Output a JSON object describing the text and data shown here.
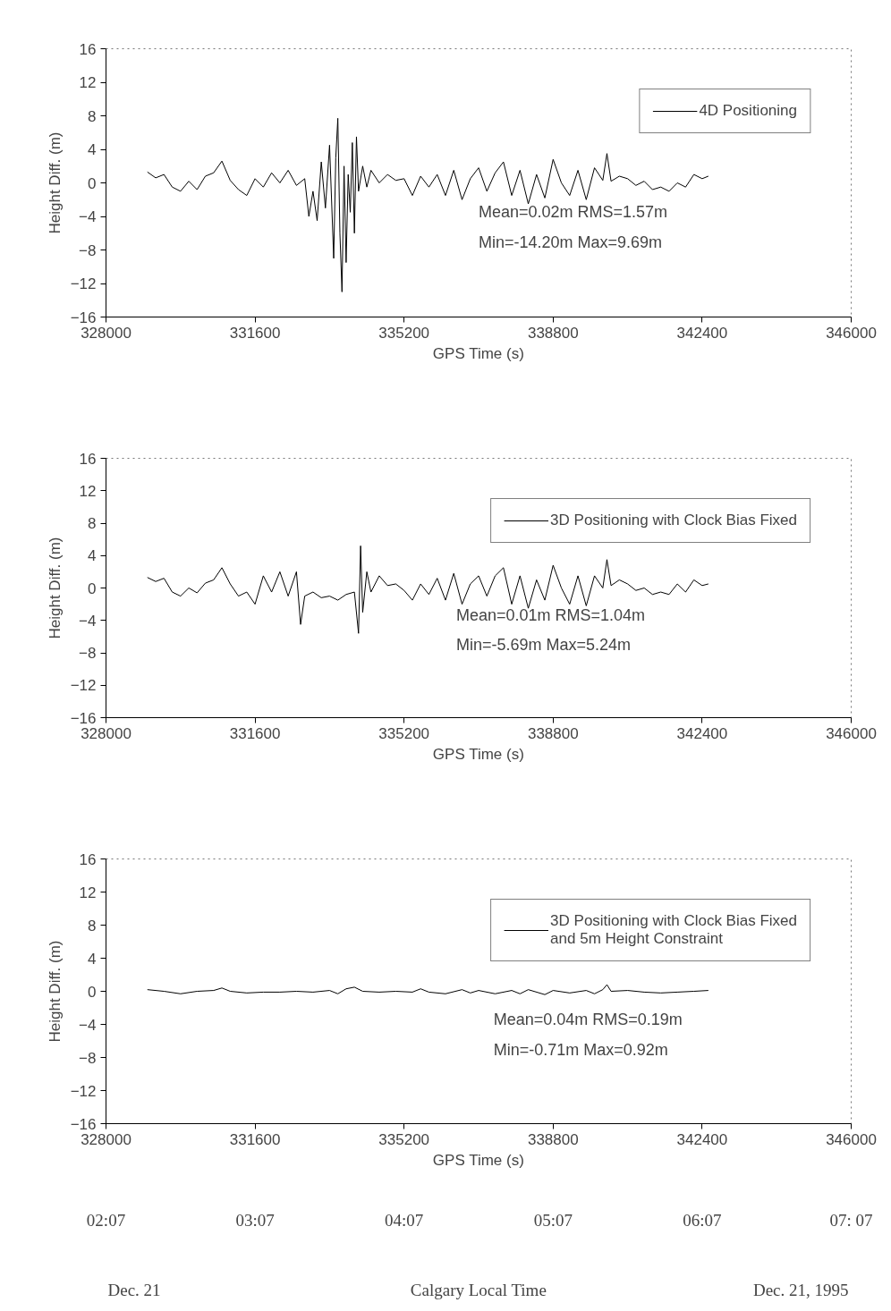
{
  "chart_data": [
    {
      "type": "line",
      "xlabel": "GPS Time (s)",
      "ylabel": "Height Diff. (m)",
      "xlim": [
        328000,
        346000
      ],
      "ylim": [
        -16,
        16
      ],
      "xticks": [
        328000,
        331600,
        335200,
        338800,
        342400,
        346000
      ],
      "yticks": [
        -16,
        -12,
        -8,
        -4,
        0,
        4,
        8,
        12,
        16
      ],
      "grid": false,
      "legend": "top right",
      "series": [
        {
          "name": "4D Positioning",
          "color": "#000000",
          "x": [
            329000,
            329200,
            329400,
            329600,
            329800,
            330000,
            330200,
            330400,
            330600,
            330800,
            331000,
            331200,
            331400,
            331600,
            331800,
            332000,
            332200,
            332400,
            332600,
            332800,
            332900,
            333000,
            333100,
            333200,
            333300,
            333400,
            333500,
            333550,
            333600,
            333650,
            333700,
            333750,
            333800,
            333850,
            333900,
            333950,
            334000,
            334050,
            334100,
            334200,
            334300,
            334400,
            334600,
            334800,
            335000,
            335200,
            335400,
            335600,
            335800,
            336000,
            336200,
            336400,
            336600,
            336800,
            337000,
            337200,
            337400,
            337600,
            337800,
            338000,
            338200,
            338400,
            338600,
            338800,
            339000,
            339200,
            339400,
            339600,
            339800,
            340000,
            340100,
            340200,
            340400,
            340600,
            340800,
            341000,
            341200,
            341400,
            341600,
            341800,
            342000,
            342200,
            342400,
            342550
          ],
          "values": [
            1.3,
            0.6,
            1.0,
            -0.5,
            -1.0,
            0.2,
            -0.8,
            0.8,
            1.2,
            2.6,
            0.3,
            -0.8,
            -1.5,
            0.5,
            -0.5,
            1.2,
            0.0,
            1.5,
            -0.3,
            0.5,
            -4.0,
            -1.0,
            -4.5,
            2.5,
            -3.0,
            4.5,
            -9.0,
            3.0,
            7.7,
            -6.0,
            -13.0,
            2.0,
            -9.5,
            1.0,
            -3.5,
            4.8,
            -6.0,
            5.5,
            -1.0,
            2.0,
            -0.5,
            1.5,
            0.0,
            1.0,
            0.3,
            0.5,
            -1.5,
            0.8,
            -0.5,
            1.0,
            -1.5,
            1.5,
            -2.0,
            0.5,
            1.8,
            -1.0,
            1.2,
            2.5,
            -1.5,
            1.5,
            -2.5,
            1.0,
            -1.8,
            2.8,
            0.0,
            -1.5,
            1.5,
            -2.0,
            1.8,
            0.3,
            3.5,
            0.2,
            0.8,
            0.5,
            -0.3,
            0.2,
            -0.8,
            -0.5,
            -1.0,
            0.0,
            -0.5,
            1.0,
            0.5,
            0.8
          ]
        }
      ],
      "annotations": [
        "Mean=0.02m   RMS=1.57m",
        "Min=-14.20m   Max=9.69m"
      ]
    },
    {
      "type": "line",
      "xlabel": "GPS Time (s)",
      "ylabel": "Height Diff. (m)",
      "xlim": [
        328000,
        346000
      ],
      "ylim": [
        -16,
        16
      ],
      "xticks": [
        328000,
        331600,
        335200,
        338800,
        342400,
        346000
      ],
      "yticks": [
        -16,
        -12,
        -8,
        -4,
        0,
        4,
        8,
        12,
        16
      ],
      "grid": false,
      "legend": "top right",
      "series": [
        {
          "name": "3D Positioning with Clock Bias Fixed",
          "color": "#000000",
          "x": [
            329000,
            329200,
            329400,
            329600,
            329800,
            330000,
            330200,
            330400,
            330600,
            330800,
            331000,
            331200,
            331400,
            331600,
            331800,
            332000,
            332200,
            332400,
            332600,
            332700,
            332800,
            333000,
            333200,
            333400,
            333600,
            333800,
            334000,
            334100,
            334150,
            334200,
            334300,
            334400,
            334600,
            334800,
            335000,
            335200,
            335400,
            335600,
            335800,
            336000,
            336200,
            336400,
            336600,
            336800,
            337000,
            337200,
            337400,
            337600,
            337800,
            338000,
            338200,
            338400,
            338600,
            338800,
            339000,
            339200,
            339400,
            339600,
            339800,
            340000,
            340100,
            340200,
            340400,
            340600,
            340800,
            341000,
            341200,
            341400,
            341600,
            341800,
            342000,
            342200,
            342400,
            342550
          ],
          "values": [
            1.3,
            0.8,
            1.2,
            -0.5,
            -1.0,
            0.0,
            -0.6,
            0.6,
            1.0,
            2.5,
            0.5,
            -1.0,
            -0.5,
            -2.0,
            1.5,
            -0.5,
            2.0,
            -1.0,
            2.0,
            -4.5,
            -1.0,
            -0.5,
            -1.2,
            -1.0,
            -1.5,
            -0.8,
            -0.5,
            -5.6,
            5.2,
            -3.0,
            2.0,
            -0.5,
            1.5,
            0.3,
            0.5,
            -0.3,
            -1.5,
            0.5,
            -0.8,
            1.2,
            -1.5,
            1.8,
            -2.0,
            0.5,
            1.5,
            -1.0,
            1.5,
            2.5,
            -2.0,
            1.5,
            -2.5,
            1.0,
            -1.5,
            2.8,
            0.0,
            -2.0,
            1.5,
            -2.2,
            1.5,
            0.0,
            3.5,
            0.3,
            1.0,
            0.5,
            -0.3,
            0.0,
            -0.8,
            -0.5,
            -0.8,
            0.5,
            -0.5,
            1.0,
            0.3,
            0.5
          ]
        }
      ],
      "annotations": [
        "Mean=0.01m   RMS=1.04m",
        "Min=-5.69m     Max=5.24m"
      ]
    },
    {
      "type": "line",
      "xlabel": "GPS Time (s)",
      "ylabel": "Height Diff. (m)",
      "xlim": [
        328000,
        346000
      ],
      "ylim": [
        -16,
        16
      ],
      "xticks": [
        328000,
        331600,
        335200,
        338800,
        342400,
        346000
      ],
      "yticks": [
        -16,
        -12,
        -8,
        -4,
        0,
        4,
        8,
        12,
        16
      ],
      "grid": false,
      "legend": "top right",
      "x2lim": [
        2.1167,
        7.1167
      ],
      "x2label": "Calgary Local Time",
      "x2ticks": [
        {
          "value": 2.1167,
          "label": "02:07"
        },
        {
          "value": 3.1167,
          "label": "03:07"
        },
        {
          "value": 4.1167,
          "label": "04:07"
        },
        {
          "value": 5.1167,
          "label": "05:07"
        },
        {
          "value": 6.1167,
          "label": "06:07"
        },
        {
          "value": 7.1167,
          "label": "07: 07"
        }
      ],
      "series": [
        {
          "name": "3D Positioning with Clock Bias Fixed\nand 5m Height Constraint",
          "color": "#000000",
          "x": [
            329000,
            329400,
            329800,
            330200,
            330600,
            330800,
            331000,
            331400,
            331800,
            332200,
            332600,
            333000,
            333400,
            333600,
            333800,
            334000,
            334200,
            334600,
            335000,
            335400,
            335600,
            335800,
            336200,
            336600,
            336800,
            337000,
            337400,
            337800,
            338000,
            338200,
            338600,
            338800,
            339200,
            339600,
            339800,
            340000,
            340100,
            340200,
            340600,
            341000,
            341400,
            341800,
            342200,
            342550
          ],
          "values": [
            0.2,
            0.0,
            -0.3,
            0.0,
            0.1,
            0.4,
            0.0,
            -0.2,
            -0.1,
            -0.1,
            0.0,
            -0.1,
            0.1,
            -0.3,
            0.3,
            0.5,
            0.0,
            -0.1,
            0.0,
            -0.1,
            0.3,
            -0.1,
            -0.3,
            0.2,
            -0.2,
            0.1,
            -0.3,
            0.1,
            -0.3,
            0.2,
            -0.4,
            0.1,
            -0.2,
            0.1,
            -0.3,
            0.2,
            0.8,
            0.0,
            0.1,
            -0.1,
            -0.2,
            -0.1,
            0.0,
            0.1
          ]
        }
      ],
      "annotations": [
        "Mean=0.04m   RMS=0.19m",
        "Min=-0.71m     Max=0.92m",
        "Dec. 21",
        "Dec. 21, 1995"
      ]
    }
  ]
}
